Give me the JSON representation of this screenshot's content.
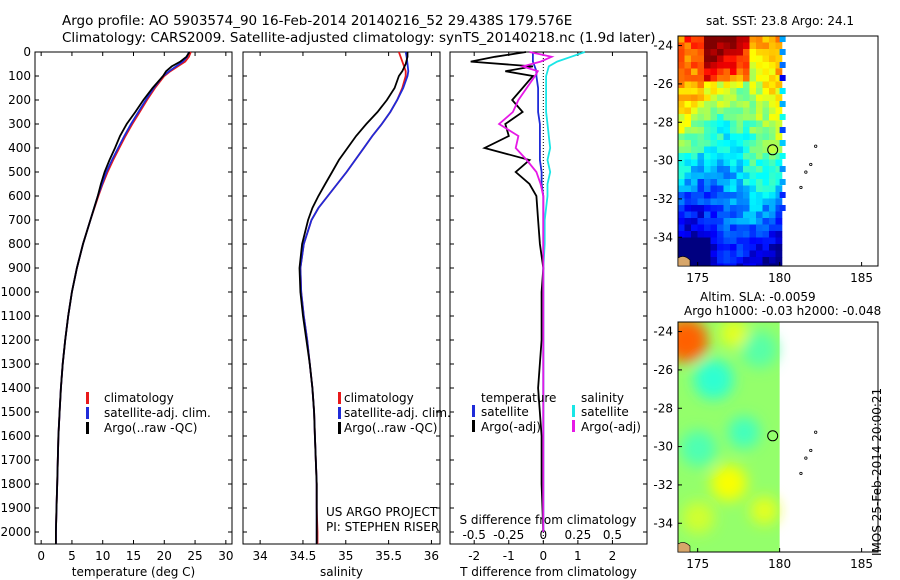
{
  "title_line1": "Argo profile: AO 5903574_90 16-Feb-2014 20140216_52 29.438S 179.576E",
  "title_line2": "Climatology: CARS2009. Satellite-adjusted climatology: synTS_20140218.nc (1.9d later)",
  "sst_label": "sat. SST: 23.8 Argo: 24.1",
  "sla_label1": "Altim. SLA: -0.0059",
  "sla_label2": "Argo h1000: -0.03 h2000: -0.048",
  "project_line1": "US ARGO PROJECT",
  "project_line2": "PI: STEPHEN RISER",
  "stamp": "IMOS 25-Feb-2014 20:00:21",
  "colors": {
    "climatology": "#e8191b",
    "satellite": "#1f2bd8",
    "argo": "#000000",
    "sal_satellite": "#19e6e6",
    "sal_argo": "#e619e6"
  },
  "legend_profiles": [
    "climatology",
    "satellite-adj. clim.",
    "Argo(..raw -QC)"
  ],
  "legend_diff": {
    "temperature_header": "temperature",
    "salinity_header": "salinity",
    "temperature_items": [
      "satellite",
      "Argo(-adj)"
    ],
    "salinity_items": [
      "satellite",
      "Argo(-adj)"
    ]
  },
  "chart_data": [
    {
      "type": "line",
      "xlabel": "temperature (deg C)",
      "xlim": [
        -1,
        31
      ],
      "ylim": [
        2050,
        0
      ],
      "xticks": [
        "0",
        "5",
        "10",
        "15",
        "20",
        "25",
        "30"
      ],
      "yticks": [
        "0",
        "100",
        "200",
        "300",
        "400",
        "500",
        "600",
        "700",
        "800",
        "900",
        "1000",
        "1100",
        "1200",
        "1300",
        "1400",
        "1500",
        "1600",
        "1700",
        "1800",
        "1900",
        "2000"
      ],
      "depth": [
        0,
        20,
        40,
        60,
        80,
        100,
        150,
        200,
        250,
        300,
        350,
        400,
        450,
        500,
        550,
        600,
        700,
        800,
        900,
        1000,
        1100,
        1200,
        1300,
        1400,
        1500,
        1600,
        1700,
        1800,
        1900,
        2000,
        2050
      ],
      "series": [
        {
          "name": "climatology",
          "values": [
            24.3,
            24.0,
            23.4,
            22.2,
            21.0,
            20.0,
            18.5,
            17.2,
            16.0,
            14.8,
            13.7,
            12.7,
            11.7,
            10.8,
            10.0,
            9.3,
            8.0,
            6.8,
            5.8,
            5.0,
            4.4,
            3.9,
            3.5,
            3.2,
            3.0,
            2.8,
            2.7,
            2.6,
            2.5,
            2.4,
            2.4
          ]
        },
        {
          "name": "satellite-adj. clim.",
          "values": [
            24.0,
            23.7,
            23.0,
            21.9,
            20.8,
            19.8,
            18.3,
            17.0,
            15.8,
            14.6,
            13.5,
            12.5,
            11.5,
            10.6,
            9.9,
            9.2,
            8.0,
            6.8,
            5.8,
            5.0,
            4.4,
            3.9,
            3.5,
            3.2,
            3.0,
            2.8,
            2.7,
            2.6,
            2.5,
            2.4,
            2.4
          ]
        },
        {
          "name": "Argo(..raw -QC)",
          "values": [
            24.1,
            23.6,
            22.6,
            21.2,
            20.3,
            19.8,
            18.1,
            16.6,
            15.3,
            13.9,
            12.8,
            12.0,
            11.1,
            10.3,
            9.7,
            9.2,
            8.0,
            6.8,
            5.8,
            5.0,
            4.4,
            3.9,
            3.5,
            3.2,
            3.0,
            2.8,
            2.7,
            2.6,
            2.5,
            2.4,
            2.4
          ]
        }
      ]
    },
    {
      "type": "line",
      "xlabel": "salinity",
      "xlim": [
        33.8,
        36.1
      ],
      "ylim": [
        2050,
        0
      ],
      "xticks": [
        "34",
        "34.5",
        "35",
        "35.5",
        "36"
      ],
      "depth": [
        0,
        20,
        50,
        80,
        100,
        150,
        200,
        250,
        300,
        350,
        400,
        450,
        500,
        550,
        600,
        650,
        700,
        800,
        900,
        1000,
        1100,
        1200,
        1300,
        1400,
        1500,
        1600,
        1700,
        1800,
        1900,
        2000,
        2050
      ],
      "series": [
        {
          "name": "climatology",
          "values": [
            35.62,
            35.64,
            35.67,
            35.7,
            35.7,
            35.66,
            35.6,
            35.52,
            35.42,
            35.31,
            35.21,
            35.11,
            35.01,
            34.9,
            34.79,
            34.68,
            34.6,
            34.51,
            34.47,
            34.48,
            34.51,
            34.55,
            34.58,
            34.61,
            34.63,
            34.64,
            34.65,
            34.66,
            34.66,
            34.67,
            34.67
          ]
        },
        {
          "name": "satellite-adj. clim.",
          "values": [
            35.7,
            35.71,
            35.72,
            35.73,
            35.72,
            35.67,
            35.6,
            35.52,
            35.42,
            35.31,
            35.21,
            35.11,
            35.01,
            34.9,
            34.79,
            34.68,
            34.6,
            34.51,
            34.47,
            34.48,
            34.51,
            34.55,
            34.58,
            34.61,
            34.63,
            34.64,
            34.65,
            34.66,
            34.66,
            34.66,
            34.66
          ]
        },
        {
          "name": "Argo(..raw -QC)",
          "values": [
            35.72,
            35.72,
            35.7,
            35.66,
            35.62,
            35.57,
            35.48,
            35.37,
            35.24,
            35.12,
            35.02,
            34.92,
            34.84,
            34.76,
            34.68,
            34.61,
            34.56,
            34.49,
            34.46,
            34.47,
            34.5,
            34.54,
            34.58,
            34.61,
            34.63,
            34.64,
            34.65,
            34.66,
            34.66,
            34.66,
            34.66
          ]
        }
      ]
    },
    {
      "type": "line",
      "xlabel": "T difference from climatology",
      "top_label": "S difference from climatology",
      "xlim": [
        -2.7,
        3.0
      ],
      "ylim": [
        2050,
        0
      ],
      "xticks": [
        "-2",
        "-1",
        "0",
        "1",
        "2"
      ],
      "top_ticks": [
        "-0.5",
        "-0.25",
        "0",
        "0.25",
        "0.5"
      ],
      "depth": [
        0,
        20,
        40,
        60,
        80,
        100,
        150,
        200,
        250,
        300,
        350,
        400,
        450,
        500,
        550,
        600,
        700,
        800,
        900,
        1000,
        1200,
        1400,
        1600,
        1800,
        2000
      ],
      "series": [
        {
          "name": "temperature satellite",
          "values": [
            -0.3,
            -0.3,
            -0.3,
            -0.25,
            -0.2,
            -0.2,
            -0.15,
            -0.15,
            -0.15,
            -0.1,
            -0.1,
            -0.1,
            -0.1,
            -0.05,
            -0.05,
            0,
            0,
            0,
            0,
            0,
            0,
            0,
            0,
            0,
            0
          ]
        },
        {
          "name": "temperature Argo(-adj)",
          "values": [
            -0.5,
            -1.4,
            -2.1,
            -0.3,
            -1.1,
            -0.3,
            -0.6,
            -0.9,
            -0.6,
            -1.1,
            -1.0,
            -1.7,
            -0.4,
            -0.8,
            -0.4,
            -0.2,
            -0.15,
            -0.1,
            0,
            -0.05,
            -0.05,
            -0.15,
            -0.05,
            -0.05,
            0
          ]
        },
        {
          "name": "salinity satellite",
          "values": [
            0.3,
            0.2,
            0.1,
            0.04,
            0.03,
            0.02,
            0.02,
            0.02,
            0.02,
            0.03,
            0.04,
            0.05,
            0.03,
            0.05,
            0.03,
            0.03,
            0.01,
            0.01,
            0,
            0,
            0,
            0,
            0,
            0,
            0
          ]
        },
        {
          "name": "salinity Argo(-adj)",
          "values": [
            -0.1,
            0.06,
            -0.02,
            -0.15,
            -0.04,
            -0.06,
            -0.12,
            -0.18,
            -0.22,
            -0.32,
            -0.18,
            -0.2,
            -0.12,
            -0.05,
            -0.02,
            0,
            0,
            0,
            0,
            0,
            0,
            0,
            0,
            0,
            0
          ]
        }
      ]
    },
    {
      "type": "heatmap",
      "title": "sat. SST: 23.8 Argo: 24.1",
      "xlim": [
        173.8,
        186
      ],
      "ylim": [
        -35.5,
        -23.5
      ],
      "xticks": [
        "175",
        "180",
        "185"
      ],
      "yticks": [
        "-24",
        "-26",
        "-28",
        "-30",
        "-32",
        "-34"
      ],
      "argo_position": [
        179.576,
        -29.438
      ]
    },
    {
      "type": "heatmap",
      "title": "Altim. SLA: -0.0059",
      "xlim": [
        173.8,
        186
      ],
      "ylim": [
        -35.5,
        -23.5
      ],
      "xticks": [
        "175",
        "180",
        "185"
      ],
      "yticks": [
        "-24",
        "-26",
        "-28",
        "-30",
        "-32",
        "-34"
      ],
      "argo_position": [
        179.576,
        -29.438
      ]
    }
  ]
}
